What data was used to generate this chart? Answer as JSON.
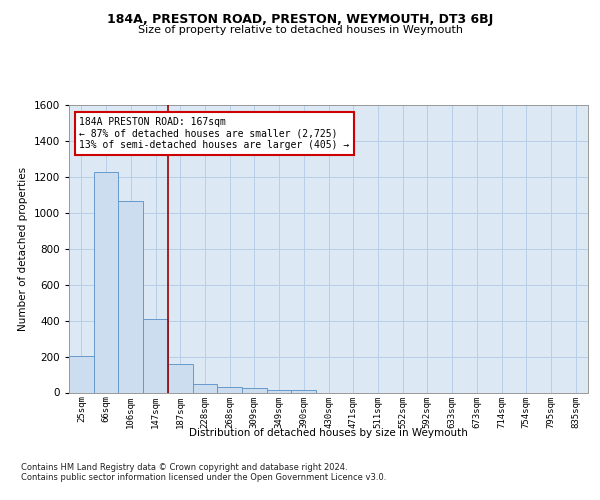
{
  "title": "184A, PRESTON ROAD, PRESTON, WEYMOUTH, DT3 6BJ",
  "subtitle": "Size of property relative to detached houses in Weymouth",
  "xlabel": "Distribution of detached houses by size in Weymouth",
  "ylabel": "Number of detached properties",
  "categories": [
    "25sqm",
    "66sqm",
    "106sqm",
    "147sqm",
    "187sqm",
    "228sqm",
    "268sqm",
    "309sqm",
    "349sqm",
    "390sqm",
    "430sqm",
    "471sqm",
    "511sqm",
    "552sqm",
    "592sqm",
    "633sqm",
    "673sqm",
    "714sqm",
    "754sqm",
    "795sqm",
    "835sqm"
  ],
  "values": [
    205,
    1225,
    1065,
    410,
    160,
    50,
    30,
    25,
    15,
    15,
    0,
    0,
    0,
    0,
    0,
    0,
    0,
    0,
    0,
    0,
    0
  ],
  "bar_color": "#ccddf0",
  "bar_edge_color": "#6699cc",
  "grid_color": "#b8cfe8",
  "bg_color": "#dde8f5",
  "vline_color": "#990000",
  "annotation_text": "184A PRESTON ROAD: 167sqm\n← 87% of detached houses are smaller (2,725)\n13% of semi-detached houses are larger (405) →",
  "annotation_box_color": "#ffffff",
  "annotation_box_edge": "#cc0000",
  "ylim": [
    0,
    1600
  ],
  "yticks": [
    0,
    200,
    400,
    600,
    800,
    1000,
    1200,
    1400,
    1600
  ],
  "footnote1": "Contains HM Land Registry data © Crown copyright and database right 2024.",
  "footnote2": "Contains public sector information licensed under the Open Government Licence v3.0."
}
